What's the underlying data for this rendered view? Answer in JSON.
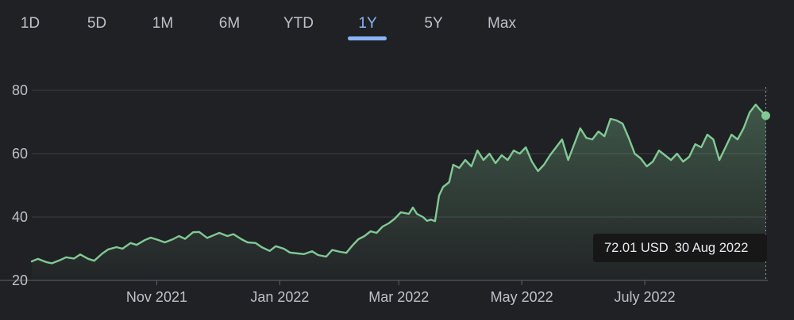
{
  "tabs": {
    "items": [
      "1D",
      "5D",
      "1M",
      "6M",
      "YTD",
      "1Y",
      "5Y",
      "Max"
    ],
    "active": "1Y"
  },
  "tooltip": {
    "value": "72.01 USD",
    "date": "30 Aug 2022"
  },
  "colors": {
    "line": "#81c995",
    "active_tab": "#8ab4f8",
    "background": "#202124"
  },
  "chart_data": {
    "type": "area",
    "title": "",
    "xlabel": "",
    "ylabel": "",
    "x_tick_labels": [
      "Nov 2021",
      "Jan 2022",
      "Mar 2022",
      "May 2022",
      "July 2022"
    ],
    "x_tick_dates": [
      "2021-11-01",
      "2022-01-01",
      "2022-03-01",
      "2022-05-01",
      "2022-07-01"
    ],
    "y_ticks": [
      20,
      40,
      60,
      80
    ],
    "ylim": [
      20,
      80
    ],
    "x_range": [
      "2021-08-31",
      "2022-08-31"
    ],
    "grid": "horizontal",
    "series": [
      {
        "values": [
          [
            "2021-08-31",
            26.0
          ],
          [
            "2021-09-03",
            26.8
          ],
          [
            "2021-09-07",
            25.8
          ],
          [
            "2021-09-10",
            25.4
          ],
          [
            "2021-09-14",
            26.4
          ],
          [
            "2021-09-17",
            27.3
          ],
          [
            "2021-09-21",
            26.9
          ],
          [
            "2021-09-24",
            28.2
          ],
          [
            "2021-09-28",
            26.8
          ],
          [
            "2021-10-01",
            26.2
          ],
          [
            "2021-10-05",
            28.5
          ],
          [
            "2021-10-08",
            29.8
          ],
          [
            "2021-10-12",
            30.5
          ],
          [
            "2021-10-15",
            30.0
          ],
          [
            "2021-10-19",
            31.8
          ],
          [
            "2021-10-22",
            31.2
          ],
          [
            "2021-10-26",
            32.7
          ],
          [
            "2021-10-29",
            33.5
          ],
          [
            "2021-11-02",
            32.7
          ],
          [
            "2021-11-05",
            32.0
          ],
          [
            "2021-11-09",
            33.0
          ],
          [
            "2021-11-12",
            34.0
          ],
          [
            "2021-11-15",
            33.1
          ],
          [
            "2021-11-19",
            35.2
          ],
          [
            "2021-11-22",
            35.3
          ],
          [
            "2021-11-26",
            33.4
          ],
          [
            "2021-11-29",
            34.2
          ],
          [
            "2021-12-02",
            35.0
          ],
          [
            "2021-12-06",
            34.0
          ],
          [
            "2021-12-09",
            34.6
          ],
          [
            "2021-12-13",
            33.0
          ],
          [
            "2021-12-16",
            32.0
          ],
          [
            "2021-12-20",
            31.8
          ],
          [
            "2021-12-23",
            30.5
          ],
          [
            "2021-12-27",
            29.3
          ],
          [
            "2021-12-30",
            30.8
          ],
          [
            "2022-01-03",
            30.0
          ],
          [
            "2022-01-06",
            28.8
          ],
          [
            "2022-01-10",
            28.5
          ],
          [
            "2022-01-13",
            28.3
          ],
          [
            "2022-01-17",
            29.2
          ],
          [
            "2022-01-20",
            28.0
          ],
          [
            "2022-01-24",
            27.5
          ],
          [
            "2022-01-27",
            29.6
          ],
          [
            "2022-01-31",
            29.0
          ],
          [
            "2022-02-03",
            28.7
          ],
          [
            "2022-02-06",
            31.0
          ],
          [
            "2022-02-09",
            33.0
          ],
          [
            "2022-02-12",
            34.0
          ],
          [
            "2022-02-15",
            35.5
          ],
          [
            "2022-02-18",
            35.0
          ],
          [
            "2022-02-21",
            37.0
          ],
          [
            "2022-02-24",
            38.0
          ],
          [
            "2022-02-27",
            39.5
          ],
          [
            "2022-03-02",
            41.5
          ],
          [
            "2022-03-06",
            41.0
          ],
          [
            "2022-03-08",
            43.0
          ],
          [
            "2022-03-10",
            41.0
          ],
          [
            "2022-03-13",
            40.0
          ],
          [
            "2022-03-15",
            38.8
          ],
          [
            "2022-03-17",
            39.2
          ],
          [
            "2022-03-19",
            38.7
          ],
          [
            "2022-03-21",
            46.8
          ],
          [
            "2022-03-23",
            49.5
          ],
          [
            "2022-03-26",
            51.0
          ],
          [
            "2022-03-28",
            56.5
          ],
          [
            "2022-03-31",
            55.5
          ],
          [
            "2022-04-03",
            58.0
          ],
          [
            "2022-04-06",
            56.0
          ],
          [
            "2022-04-09",
            61.0
          ],
          [
            "2022-04-12",
            58.0
          ],
          [
            "2022-04-15",
            60.0
          ],
          [
            "2022-04-18",
            57.0
          ],
          [
            "2022-04-21",
            59.5
          ],
          [
            "2022-04-24",
            58.0
          ],
          [
            "2022-04-27",
            61.0
          ],
          [
            "2022-04-30",
            60.0
          ],
          [
            "2022-05-03",
            62.0
          ],
          [
            "2022-05-06",
            57.5
          ],
          [
            "2022-05-09",
            54.5
          ],
          [
            "2022-05-12",
            56.5
          ],
          [
            "2022-05-15",
            59.5
          ],
          [
            "2022-05-18",
            62.0
          ],
          [
            "2022-05-21",
            64.5
          ],
          [
            "2022-05-24",
            58.0
          ],
          [
            "2022-05-27",
            63.0
          ],
          [
            "2022-05-30",
            68.0
          ],
          [
            "2022-06-02",
            65.0
          ],
          [
            "2022-06-05",
            64.5
          ],
          [
            "2022-06-08",
            67.0
          ],
          [
            "2022-06-11",
            65.5
          ],
          [
            "2022-06-14",
            71.0
          ],
          [
            "2022-06-17",
            70.5
          ],
          [
            "2022-06-20",
            69.5
          ],
          [
            "2022-06-23",
            65.0
          ],
          [
            "2022-06-26",
            60.0
          ],
          [
            "2022-06-29",
            58.5
          ],
          [
            "2022-07-02",
            56.0
          ],
          [
            "2022-07-05",
            57.5
          ],
          [
            "2022-07-08",
            61.0
          ],
          [
            "2022-07-11",
            59.5
          ],
          [
            "2022-07-14",
            58.0
          ],
          [
            "2022-07-17",
            60.0
          ],
          [
            "2022-07-20",
            57.5
          ],
          [
            "2022-07-23",
            59.0
          ],
          [
            "2022-07-26",
            63.0
          ],
          [
            "2022-07-29",
            62.0
          ],
          [
            "2022-08-01",
            66.0
          ],
          [
            "2022-08-04",
            64.5
          ],
          [
            "2022-08-07",
            58.0
          ],
          [
            "2022-08-10",
            62.0
          ],
          [
            "2022-08-13",
            66.0
          ],
          [
            "2022-08-16",
            64.5
          ],
          [
            "2022-08-19",
            68.0
          ],
          [
            "2022-08-22",
            73.0
          ],
          [
            "2022-08-25",
            75.5
          ],
          [
            "2022-08-27",
            74.0
          ],
          [
            "2022-08-30",
            72.01
          ]
        ]
      }
    ],
    "highlighted_point": [
      "2022-08-30",
      72.01
    ]
  }
}
